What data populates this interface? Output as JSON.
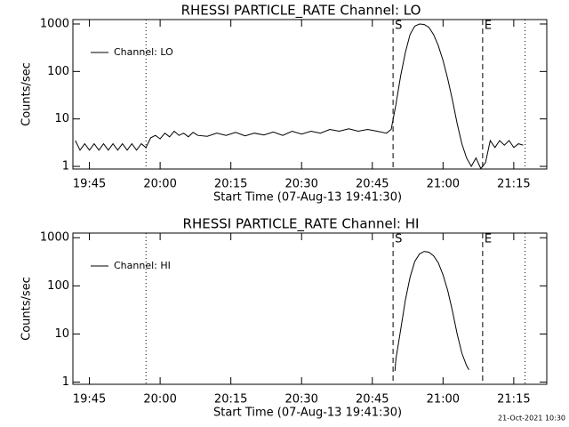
{
  "chart_data": [
    {
      "type": "line",
      "title": "RHESSI PARTICLE_RATE Channel: LO",
      "ylabel": "Counts/sec",
      "xlabel": "Start Time (07-Aug-13 19:41:30)",
      "log": true,
      "legend": "upper left",
      "xlim": [
        "19:41:30",
        "21:22:00"
      ],
      "xticks": [
        "19:45",
        "20:00",
        "20:15",
        "20:30",
        "20:45",
        "21:00",
        "21:15"
      ],
      "ylim": [
        0.88,
        1240
      ],
      "yticks": [
        1,
        10,
        100,
        1000
      ],
      "markers": [
        {
          "x": "19:57:00",
          "style": "dotted"
        },
        {
          "x": "20:49:24",
          "style": "dashed",
          "label": "S"
        },
        {
          "x": "21:08:24",
          "style": "dashed",
          "label": "E"
        },
        {
          "x": "21:17:24",
          "style": "dotted"
        }
      ],
      "x": [
        "19:42",
        "19:43",
        "19:44",
        "19:45",
        "19:46",
        "19:47",
        "19:48",
        "19:49",
        "19:50",
        "19:51",
        "19:52",
        "19:53",
        "19:54",
        "19:55",
        "19:56",
        "19:57",
        "19:58",
        "19:59",
        "20:00",
        "20:01",
        "20:02",
        "20:03",
        "20:04",
        "20:05",
        "20:06",
        "20:07",
        "20:08",
        "20:10",
        "20:12",
        "20:14",
        "20:16",
        "20:18",
        "20:20",
        "20:22",
        "20:24",
        "20:26",
        "20:28",
        "20:30",
        "20:32",
        "20:34",
        "20:36",
        "20:38",
        "20:40",
        "20:42",
        "20:44",
        "20:46",
        "20:48",
        "20:49",
        "20:50",
        "20:51",
        "20:52",
        "20:53",
        "20:54",
        "20:55",
        "20:56",
        "20:57",
        "20:58",
        "20:59",
        "21:00",
        "21:01",
        "21:02",
        "21:03",
        "21:04",
        "21:05",
        "21:06",
        "21:07",
        "21:08",
        "21:09",
        "21:10",
        "21:11",
        "21:12",
        "21:13",
        "21:14",
        "21:15",
        "21:16",
        "21:17"
      ],
      "series": [
        {
          "name": "Channel: LO",
          "color": "#000000",
          "values": [
            3.5,
            2.2,
            3,
            2.2,
            3,
            2.2,
            3,
            2.2,
            3,
            2.2,
            3,
            2.2,
            3,
            2.2,
            3,
            2.5,
            4,
            4.5,
            3.8,
            5,
            4.2,
            5.5,
            4.5,
            5,
            4.2,
            5.2,
            4.5,
            4.3,
            5,
            4.5,
            5.2,
            4.4,
            5,
            4.6,
            5.3,
            4.5,
            5.5,
            4.8,
            5.5,
            5,
            6,
            5.5,
            6.2,
            5.5,
            6,
            5.5,
            5,
            6,
            20,
            80,
            250,
            600,
            900,
            1000,
            980,
            850,
            600,
            350,
            170,
            70,
            25,
            8,
            3,
            1.5,
            1,
            1.5,
            0.9,
            1.2,
            3.5,
            2.5,
            3.5,
            2.8,
            3.5,
            2.5,
            3,
            2.8
          ]
        }
      ]
    },
    {
      "type": "line",
      "title": "RHESSI PARTICLE_RATE Channel: HI",
      "ylabel": "Counts/sec",
      "xlabel": "Start Time (07-Aug-13 19:41:30)",
      "log": true,
      "legend": "upper left",
      "xlim": [
        "19:41:30",
        "21:22:00"
      ],
      "xticks": [
        "19:45",
        "20:00",
        "20:15",
        "20:30",
        "20:45",
        "21:00",
        "21:15"
      ],
      "ylim": [
        0.9,
        1250
      ],
      "yticks": [
        1,
        10,
        100,
        1000
      ],
      "markers": [
        {
          "x": "19:57:00",
          "style": "dotted"
        },
        {
          "x": "20:49:24",
          "style": "dashed",
          "label": "S"
        },
        {
          "x": "21:08:24",
          "style": "dashed",
          "label": "E"
        },
        {
          "x": "21:17:24",
          "style": "dotted"
        }
      ],
      "x": [
        "20:49:48",
        "20:50",
        "20:51",
        "20:52",
        "20:53",
        "20:54",
        "20:55",
        "20:56",
        "20:57",
        "20:58",
        "20:59",
        "21:00",
        "21:01",
        "21:02",
        "21:03",
        "21:04",
        "21:05",
        "21:05:30"
      ],
      "series": [
        {
          "name": "Channel: HI",
          "color": "#000000",
          "values": [
            1.7,
            3,
            12,
            50,
            150,
            320,
            460,
            520,
            500,
            420,
            300,
            170,
            80,
            30,
            10,
            4,
            2.2,
            1.8
          ]
        }
      ]
    }
  ],
  "footer": "21-Oct-2021 10:30"
}
